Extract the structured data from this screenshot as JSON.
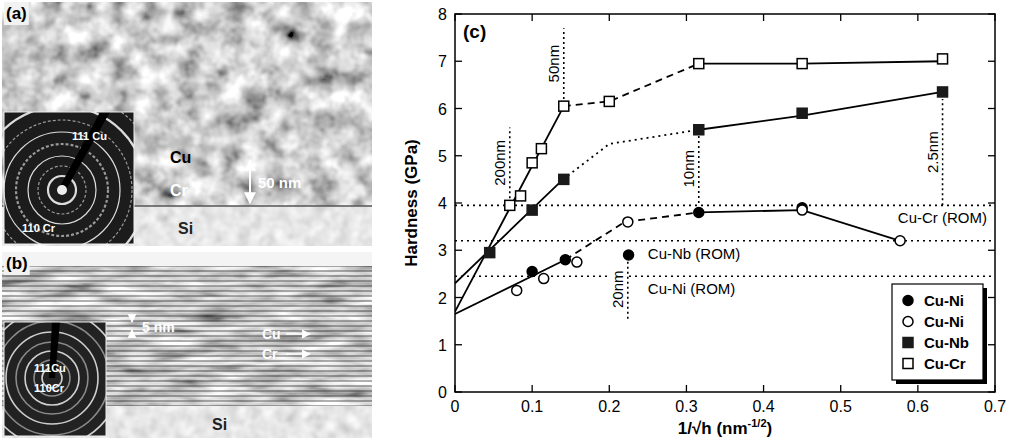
{
  "images": [
    {
      "panel": "(a)",
      "layer_top": "Cu",
      "layer_bottom": "Cr",
      "scale": "50 nm",
      "substrate": "Si",
      "ring_1": "111 Cu",
      "ring_2": "110 Cr"
    },
    {
      "panel": "(b)",
      "scale": "5 nm",
      "layer_1": "Cu",
      "layer_2": "Cr",
      "substrate": "Si",
      "ring_1": "111Cu",
      "ring_2": "110Cr"
    }
  ],
  "chart_data": {
    "type": "scatter",
    "panel_label": "(c)",
    "x_label": "1/√h (nm-1/2)",
    "y_label": "Hardness (GPa)",
    "xlim": [
      0,
      0.7
    ],
    "xticks": [
      0,
      0.1,
      0.2,
      0.3,
      0.4,
      0.5,
      0.6,
      0.7
    ],
    "ylim": [
      0,
      8
    ],
    "yticks": [
      0,
      1,
      2,
      3,
      4,
      5,
      6,
      7,
      8
    ],
    "grid": false,
    "legend": "lower right",
    "series": [
      {
        "name": "Cu-Ni",
        "type": "scatter",
        "marker": "filled_circle",
        "color": "#000000",
        "x": [
          0.1,
          0.143,
          0.225,
          0.316,
          0.45
        ],
        "values": [
          2.55,
          2.8,
          2.9,
          3.8,
          3.9
        ]
      },
      {
        "name": "Cu-Ni",
        "type": "scatter",
        "marker": "open_circle",
        "color": "#000000",
        "x": [
          0.08,
          0.115,
          0.158,
          0.224,
          0.45,
          0.577
        ],
        "values": [
          2.15,
          2.4,
          2.75,
          3.6,
          3.85,
          3.2
        ]
      },
      {
        "name": "Cu-Nb",
        "type": "scatter",
        "marker": "filled_square",
        "color": "#1a1a1a",
        "x": [
          0.045,
          0.1,
          0.141,
          0.316,
          0.45,
          0.632
        ],
        "values": [
          2.95,
          3.85,
          4.5,
          5.55,
          5.9,
          6.35
        ]
      },
      {
        "name": "Cu-Cr",
        "type": "scatter",
        "marker": "open_square",
        "color": "#000000",
        "x": [
          0.071,
          0.085,
          0.1,
          0.112,
          0.141,
          0.2,
          0.316,
          0.45,
          0.632
        ],
        "values": [
          3.95,
          4.15,
          4.85,
          5.15,
          6.05,
          6.15,
          6.95,
          6.95,
          7.05
        ]
      },
      {
        "type": "line",
        "line_style": "solid",
        "color": "#000000",
        "x": [
          0,
          0.141
        ],
        "values": [
          1.7,
          6.05
        ]
      },
      {
        "type": "line",
        "line_style": "dashed",
        "color": "#000000",
        "x": [
          0.141,
          0.2,
          0.316
        ],
        "values": [
          6.05,
          6.15,
          6.95
        ]
      },
      {
        "type": "line",
        "line_style": "solid",
        "color": "#000000",
        "x": [
          0.316,
          0.45,
          0.632
        ],
        "values": [
          6.95,
          6.95,
          7.0
        ]
      },
      {
        "type": "line",
        "line_style": "solid",
        "color": "#000000",
        "x": [
          0,
          0.14
        ],
        "values": [
          2.3,
          4.5
        ]
      },
      {
        "type": "line",
        "line_style": "dotted",
        "color": "#000000",
        "x": [
          0.14,
          0.2,
          0.316
        ],
        "values": [
          4.5,
          5.25,
          5.55
        ]
      },
      {
        "type": "line",
        "line_style": "solid",
        "color": "#000000",
        "x": [
          0.316,
          0.45,
          0.632
        ],
        "values": [
          5.55,
          5.85,
          6.35
        ]
      },
      {
        "type": "line",
        "line_style": "solid",
        "color": "#000000",
        "x": [
          0,
          0.143
        ],
        "values": [
          1.65,
          2.8
        ]
      },
      {
        "type": "line",
        "line_style": "dashed",
        "color": "#000000",
        "x": [
          0.143,
          0.22,
          0.316
        ],
        "values": [
          2.8,
          3.6,
          3.8
        ]
      },
      {
        "type": "line",
        "line_style": "solid",
        "color": "#000000",
        "x": [
          0.316,
          0.45,
          0.577
        ],
        "values": [
          3.8,
          3.85,
          3.2
        ]
      }
    ],
    "reference_lines": [
      {
        "label": "Cu-Cr (ROM)",
        "value": 3.95
      },
      {
        "label": "Cu-Nb (ROM)",
        "value": 3.2
      },
      {
        "label": "Cu-Ni (ROM)",
        "value": 2.45
      }
    ],
    "annotations": [
      {
        "text": "50nm",
        "x": 0.141,
        "y": [
          6.2,
          7.7
        ]
      },
      {
        "text": "200nm",
        "x": 0.071,
        "y": [
          4.1,
          5.6
        ]
      },
      {
        "text": "10nm",
        "x": 0.316,
        "y": [
          4.0,
          5.45
        ]
      },
      {
        "text": "2.5nm",
        "x": 0.632,
        "y": [
          3.95,
          6.2
        ]
      },
      {
        "text": "20nm",
        "x": 0.224,
        "y": [
          1.55,
          2.8
        ]
      }
    ]
  }
}
